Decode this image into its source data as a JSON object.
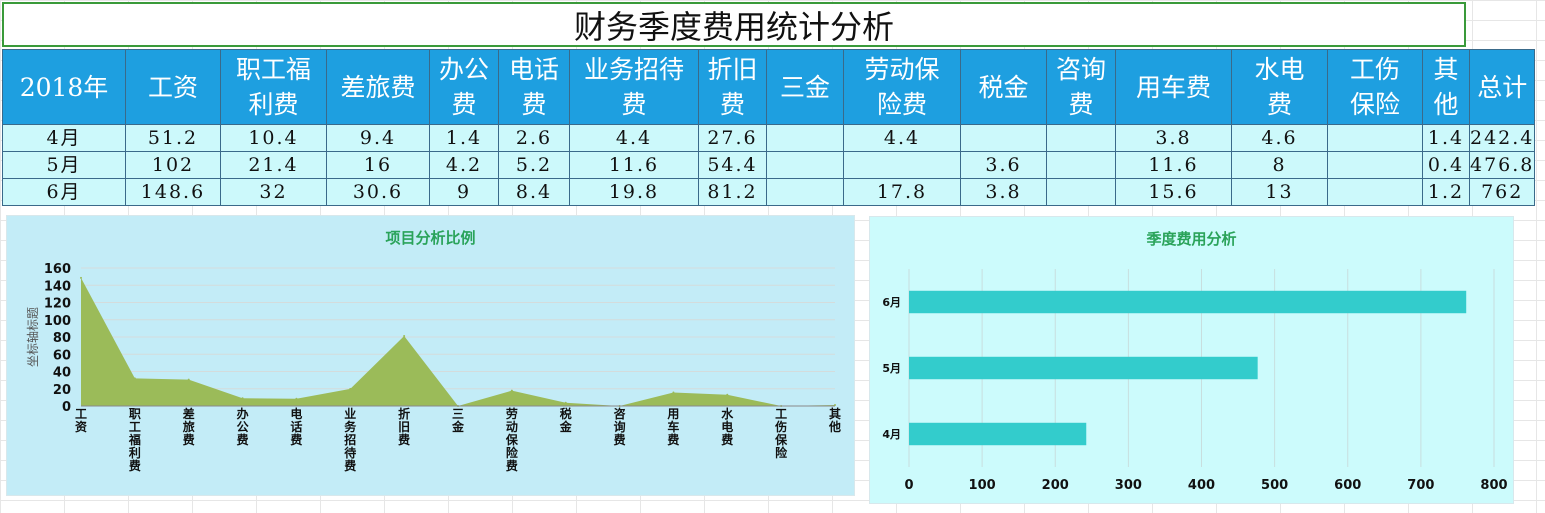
{
  "sheet": {
    "title": "财务季度费用统计分析"
  },
  "table": {
    "headers": [
      [
        "2018年"
      ],
      [
        "工资"
      ],
      [
        "职工福",
        "利费"
      ],
      [
        "差旅费"
      ],
      [
        "办公",
        "费"
      ],
      [
        "电话",
        "费"
      ],
      [
        "业务招待",
        "费"
      ],
      [
        "折旧",
        "费"
      ],
      [
        "三金"
      ],
      [
        "劳动保",
        "险费"
      ],
      [
        "税金"
      ],
      [
        "咨询",
        "费"
      ],
      [
        "用车费"
      ],
      [
        "水电",
        "费"
      ],
      [
        "工伤",
        "保险"
      ],
      [
        "其",
        "他"
      ],
      [
        "总计"
      ]
    ],
    "rows": [
      [
        "4月",
        "51.2",
        "10.4",
        "9.4",
        "1.4",
        "2.6",
        "4.4",
        "27.6",
        "",
        "4.4",
        "",
        "",
        "3.8",
        "4.6",
        "",
        "1.4",
        "242.4"
      ],
      [
        "5月",
        "102",
        "21.4",
        "16",
        "4.2",
        "5.2",
        "11.6",
        "54.4",
        "",
        "",
        "3.6",
        "",
        "11.6",
        "8",
        "",
        "0.4",
        "476.8"
      ],
      [
        "6月",
        "148.6",
        "32",
        "30.6",
        "9",
        "8.4",
        "19.8",
        "81.2",
        "",
        "17.8",
        "3.8",
        "",
        "15.6",
        "13",
        "",
        "1.2",
        "762"
      ]
    ]
  },
  "chart_data": [
    {
      "type": "area",
      "title": "项目分析比例",
      "ylabel": "坐标轴标题",
      "xlabel": "",
      "categories": [
        "工资",
        "职工福利费",
        "差旅费",
        "办公费",
        "电话费",
        "业务招待费",
        "折旧费",
        "三金",
        "劳动保险费",
        "税金",
        "咨询费",
        "用车费",
        "水电费",
        "工伤保险",
        "其他"
      ],
      "series": [
        {
          "values": [
            148.6,
            32,
            30.6,
            9,
            8.4,
            19.8,
            81.2,
            0,
            17.8,
            3.8,
            0,
            15.6,
            13,
            0,
            1.2
          ],
          "color": "#9bbb59"
        }
      ],
      "ylim": [
        0,
        160
      ],
      "yticks": [
        0,
        20,
        40,
        60,
        80,
        100,
        120,
        140,
        160
      ],
      "grid": true,
      "legend": "none"
    },
    {
      "type": "bar",
      "orientation": "horizontal",
      "title": "季度费用分析",
      "xlabel": "",
      "ylabel": "",
      "categories": [
        "4月",
        "5月",
        "6月"
      ],
      "series": [
        {
          "values": [
            242.4,
            476.8,
            762
          ],
          "color": "#33cccc"
        }
      ],
      "xlim": [
        0,
        800
      ],
      "xticks": [
        0,
        100,
        200,
        300,
        400,
        500,
        600,
        700,
        800
      ],
      "grid": true,
      "legend": "none"
    }
  ]
}
